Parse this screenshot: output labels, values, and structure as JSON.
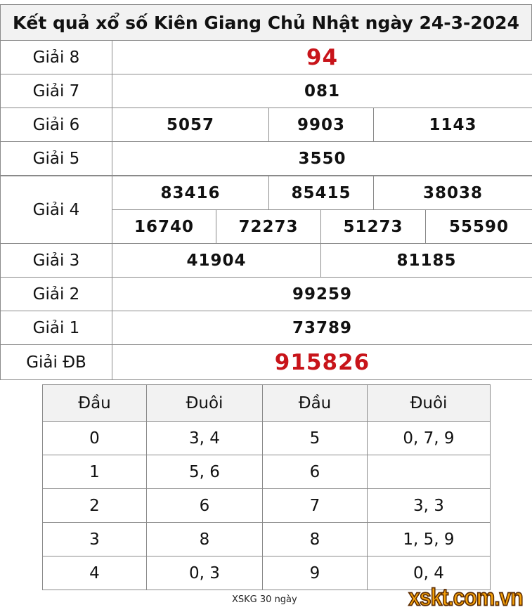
{
  "title": "Kết quả xổ số Kiên Giang Chủ Nhật ngày 24-3-2024",
  "prizes": {
    "g8": {
      "label": "Giải 8",
      "values": [
        "94"
      ]
    },
    "g7": {
      "label": "Giải 7",
      "values": [
        "081"
      ]
    },
    "g6": {
      "label": "Giải 6",
      "values": [
        "5057",
        "9903",
        "1143"
      ]
    },
    "g5": {
      "label": "Giải 5",
      "values": [
        "3550"
      ]
    },
    "g4": {
      "label": "Giải 4",
      "values": [
        "83416",
        "85415",
        "38038",
        "16740",
        "72273",
        "51273",
        "55590"
      ]
    },
    "g3": {
      "label": "Giải 3",
      "values": [
        "41904",
        "81185"
      ]
    },
    "g2": {
      "label": "Giải 2",
      "values": [
        "99259"
      ]
    },
    "g1": {
      "label": "Giải 1",
      "values": [
        "73789"
      ]
    },
    "gdb": {
      "label": "Giải ĐB",
      "values": [
        "915826"
      ]
    }
  },
  "loto": {
    "headers": [
      "Đầu",
      "Đuôi",
      "Đầu",
      "Đuôi"
    ],
    "rows": [
      [
        "0",
        "3, 4",
        "5",
        "0, 7, 9"
      ],
      [
        "1",
        "5, 6",
        "6",
        ""
      ],
      [
        "2",
        "6",
        "7",
        "3, 3"
      ],
      [
        "3",
        "8",
        "8",
        "1, 5, 9"
      ],
      [
        "4",
        "0, 3",
        "9",
        "0, 4"
      ]
    ]
  },
  "footer": "XSKG 30 ngày",
  "logo": "xskt.com.vn",
  "colors": {
    "special": "#c8141a",
    "header_bg": "#f2f2f2"
  }
}
